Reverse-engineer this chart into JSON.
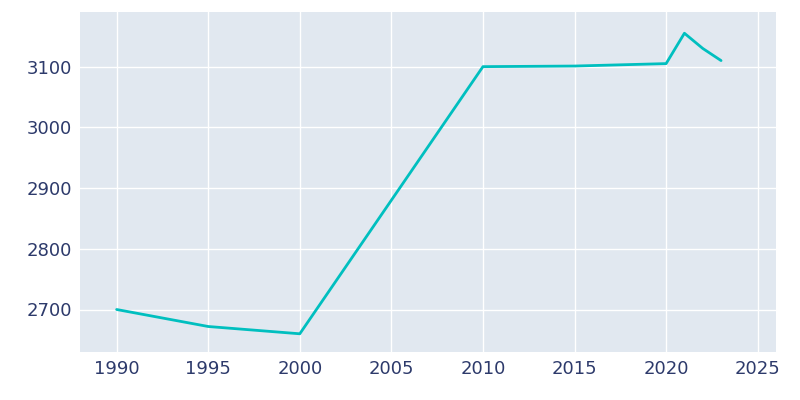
{
  "years": [
    1990,
    1995,
    2000,
    2010,
    2015,
    2020,
    2021,
    2022,
    2023
  ],
  "population": [
    2700,
    2672,
    2660,
    3100,
    3101,
    3105,
    3155,
    3130,
    3110
  ],
  "line_color": "#00BFBF",
  "plot_bg_color": "#E1E8F0",
  "fig_bg_color": "#FFFFFF",
  "grid_color": "#FFFFFF",
  "tick_color": "#2d3a6b",
  "xlim": [
    1988,
    2026
  ],
  "ylim": [
    2630,
    3190
  ],
  "yticks": [
    2700,
    2800,
    2900,
    3000,
    3100
  ],
  "xticks": [
    1990,
    1995,
    2000,
    2005,
    2010,
    2015,
    2020,
    2025
  ],
  "line_width": 2.0,
  "fig_width": 8.0,
  "fig_height": 4.0,
  "tick_fontsize": 13
}
